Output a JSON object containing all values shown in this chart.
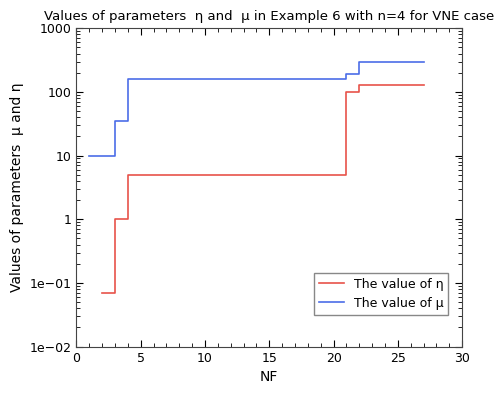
{
  "title": "Values of parameters  η and  μ in Example 6 with n=4 for VNE case",
  "xlabel": "NF",
  "ylabel": "Values of parameters  μ and η",
  "xlim": [
    0,
    29
  ],
  "ylim": [
    0.01,
    1000
  ],
  "eta_x": [
    2,
    3,
    3,
    4,
    4,
    6,
    6,
    21,
    21,
    22,
    22,
    27
  ],
  "eta_y": [
    0.07,
    0.07,
    1.0,
    1.0,
    5.0,
    5.0,
    5.0,
    5.0,
    100.0,
    100.0,
    130.0,
    130.0
  ],
  "mu_x": [
    1,
    3,
    3,
    4,
    4,
    21,
    21,
    22,
    22,
    27
  ],
  "mu_y": [
    10,
    10,
    35,
    35,
    160,
    160,
    190,
    190,
    300,
    300
  ],
  "eta_color": "#e8534a",
  "mu_color": "#4b6de8",
  "legend_eta": "The value of η",
  "legend_mu": "The value of μ",
  "linewidth": 1.2,
  "title_fontsize": 9.5,
  "label_fontsize": 10,
  "tick_fontsize": 9,
  "legend_fontsize": 9,
  "bg_color": "#ffffff",
  "xticks": [
    0,
    5,
    10,
    15,
    20,
    25,
    30
  ]
}
